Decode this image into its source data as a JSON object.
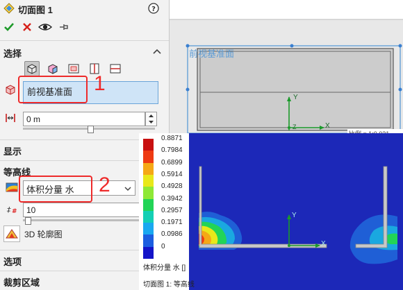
{
  "panel": {
    "title": "切面图 1",
    "help_icon": "question-circle-icon",
    "toolbar": {
      "ok_icon": "checkmark-icon",
      "cancel_icon": "x-icon",
      "preview_icon": "eye-icon",
      "pin_icon": "pushpin-icon"
    },
    "selection": {
      "header": "选择",
      "collapse_icon": "chevron-up-icon",
      "plane_value": "前视基准面",
      "offset_value": "0 m",
      "offset_slider": 0.0
    },
    "display": {
      "header": "显示"
    },
    "contours": {
      "header": "等高线",
      "parameter_value": "体积分量 水",
      "levels_value": "10",
      "levels_slider": 0.0,
      "contour_3d_label": "3D 轮廓图"
    },
    "options": {
      "header": "选项"
    },
    "clip": {
      "header": "裁剪区域"
    }
  },
  "annotations": {
    "marker_1": "1",
    "marker_2": "2"
  },
  "viewport": {
    "plane_label": "前视基准面",
    "axis_y": "Y",
    "axis_x": "X",
    "axis_z": "Z",
    "scale_text": "比例 = 1:0.021",
    "plot_title": "切面图 1: 等高线",
    "legend": {
      "title": "体积分量 水 []",
      "values": [
        "0.8871",
        "0.7984",
        "0.6899",
        "0.5914",
        "0.4928",
        "0.3942",
        "0.2957",
        "0.1971",
        "0.0986",
        "0"
      ],
      "colors": [
        "#c81010",
        "#ee3a12",
        "#f5a816",
        "#e8e81a",
        "#8ee836",
        "#22d456",
        "#14cfb4",
        "#1aa8f0",
        "#1c5ee0",
        "#1414c8"
      ]
    }
  }
}
